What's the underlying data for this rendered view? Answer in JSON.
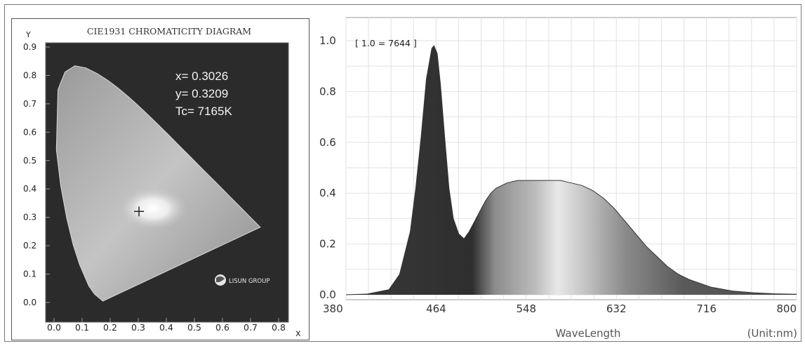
{
  "chart_data": [
    {
      "type": "scatter",
      "title": "CIE1931 CHROMATICITY DIAGRAM",
      "xlabel": "x",
      "ylabel": "Y",
      "xlim": [
        0.0,
        0.8
      ],
      "ylim": [
        0.0,
        0.9
      ],
      "x_ticks": [
        "0.0",
        "0.1",
        "0.2",
        "0.3",
        "0.4",
        "0.5",
        "0.6",
        "0.7",
        "0.8"
      ],
      "y_ticks": [
        "0.0",
        "0.1",
        "0.2",
        "0.3",
        "0.4",
        "0.5",
        "0.6",
        "0.7",
        "0.8",
        "0.9"
      ],
      "point": {
        "x": 0.3026,
        "y": 0.3209
      },
      "annotations": [
        "x= 0.3026",
        "y= 0.3209",
        "Tc= 7165K"
      ],
      "logo_text": "LISUN GROUP",
      "locus": [
        [
          0.1741,
          0.005
        ],
        [
          0.144,
          0.0297
        ],
        [
          0.1241,
          0.0578
        ],
        [
          0.0913,
          0.1327
        ],
        [
          0.0687,
          0.2007
        ],
        [
          0.0454,
          0.295
        ],
        [
          0.0235,
          0.4127
        ],
        [
          0.0082,
          0.5384
        ],
        [
          0.0139,
          0.7502
        ],
        [
          0.0389,
          0.812
        ],
        [
          0.0743,
          0.8338
        ],
        [
          0.1142,
          0.8262
        ],
        [
          0.1547,
          0.8059
        ],
        [
          0.1929,
          0.7816
        ],
        [
          0.2296,
          0.7543
        ],
        [
          0.2658,
          0.7243
        ],
        [
          0.3016,
          0.6923
        ],
        [
          0.3373,
          0.6589
        ],
        [
          0.3731,
          0.6245
        ],
        [
          0.4087,
          0.5896
        ],
        [
          0.4441,
          0.5547
        ],
        [
          0.4788,
          0.5202
        ],
        [
          0.5125,
          0.4866
        ],
        [
          0.5448,
          0.4544
        ],
        [
          0.5752,
          0.4242
        ],
        [
          0.6029,
          0.3965
        ],
        [
          0.627,
          0.3725
        ],
        [
          0.6482,
          0.3514
        ],
        [
          0.6658,
          0.334
        ],
        [
          0.6915,
          0.3083
        ],
        [
          0.7347,
          0.2653
        ]
      ],
      "grid": false
    },
    {
      "type": "area",
      "xlabel": "WaveLength",
      "unit_label": "(Unit:nm)",
      "peak_label": "[ 1.0 = 7644 ]",
      "xlim": [
        380,
        800
      ],
      "ylim": [
        0,
        1.0
      ],
      "x_ticks": [
        "380",
        "464",
        "548",
        "632",
        "716",
        "800"
      ],
      "y_ticks": [
        "0.0",
        "0.2",
        "0.4",
        "0.6",
        "0.8",
        "1.0"
      ],
      "grid": true,
      "x": [
        380,
        400,
        420,
        430,
        440,
        445,
        450,
        455,
        460,
        462,
        465,
        468,
        472,
        476,
        480,
        485,
        490,
        495,
        500,
        505,
        510,
        515,
        520,
        530,
        540,
        550,
        560,
        570,
        580,
        590,
        600,
        610,
        620,
        630,
        640,
        650,
        660,
        670,
        680,
        690,
        700,
        720,
        740,
        760,
        780,
        800
      ],
      "y": [
        0,
        0.003,
        0.02,
        0.08,
        0.25,
        0.42,
        0.62,
        0.85,
        0.97,
        0.98,
        0.95,
        0.83,
        0.62,
        0.42,
        0.3,
        0.24,
        0.22,
        0.25,
        0.29,
        0.33,
        0.37,
        0.4,
        0.42,
        0.44,
        0.45,
        0.45,
        0.45,
        0.45,
        0.45,
        0.44,
        0.43,
        0.41,
        0.38,
        0.34,
        0.29,
        0.24,
        0.19,
        0.15,
        0.11,
        0.08,
        0.06,
        0.03,
        0.015,
        0.008,
        0.004,
        0.002
      ]
    }
  ]
}
